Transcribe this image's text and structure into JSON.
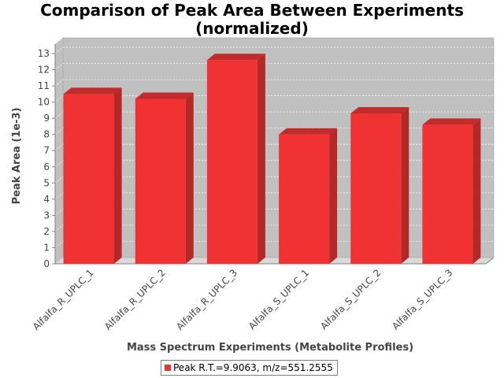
{
  "chart_data": {
    "type": "bar",
    "title": "Comparison of Peak Area Between Experiments",
    "subtitle": "(normalized)",
    "xlabel": "Mass Spectrum Experiments (Metabolite Profiles)",
    "ylabel": "Peak Area (1e-3)",
    "ylim": [
      0,
      13
    ],
    "yticks": [
      "0",
      "1",
      "2",
      "3",
      "4",
      "5",
      "6",
      "7",
      "8",
      "9",
      "10",
      "11",
      "12",
      "13"
    ],
    "categories": [
      "Alfalfa_R_UPLC_1",
      "Alfalfa_R_UPLC_2",
      "Alfalfa_R_UPLC_3",
      "Alfalfa_S_UPLC_1",
      "Alfalfa_S_UPLC_2",
      "Alfalfa_S_UPLC_3"
    ],
    "series": [
      {
        "name": "Peak R.T.=9.9063, m/z=551.2555",
        "values": [
          10.5,
          10.2,
          12.6,
          8.0,
          9.3,
          8.6
        ],
        "color": "#f03232"
      }
    ],
    "grid": true,
    "legend_position": "bottom",
    "plot_background": "#c0c0c0"
  }
}
